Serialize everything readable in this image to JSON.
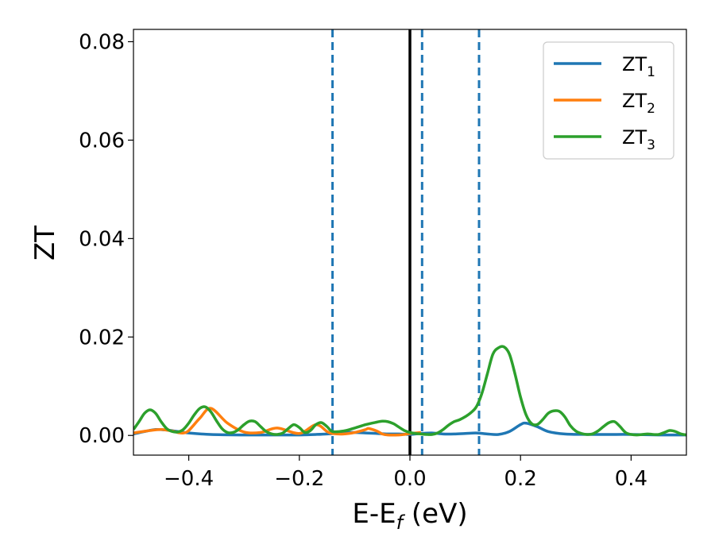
{
  "chart_data": {
    "type": "line",
    "title": "",
    "xlabel": "E-E",
    "xlabel_sub": "f",
    "xlabel_unit": " (eV)",
    "ylabel": "ZT",
    "xlim": [
      -0.5,
      0.5
    ],
    "ylim": [
      -0.004,
      0.0825
    ],
    "xticks": [
      -0.4,
      -0.2,
      0.0,
      0.2,
      0.4
    ],
    "xtick_labels": [
      "−0.4",
      "−0.2",
      "0.0",
      "0.2",
      "0.4"
    ],
    "yticks": [
      0.0,
      0.02,
      0.04,
      0.06,
      0.08
    ],
    "ytick_labels": [
      "0.00",
      "0.02",
      "0.04",
      "0.06",
      "0.08"
    ],
    "grid": false,
    "legend_position": "top-right",
    "vlines": [
      {
        "x": -0.14,
        "style": "dashed",
        "color": "#1f77b4"
      },
      {
        "x": 0.0,
        "style": "solid",
        "color": "#000000"
      },
      {
        "x": 0.022,
        "style": "dashed",
        "color": "#1f77b4"
      },
      {
        "x": 0.125,
        "style": "dashed",
        "color": "#1f77b4"
      }
    ],
    "series": [
      {
        "name": "ZT",
        "name_sub": "1",
        "color": "#1f77b4",
        "x": [
          -0.5,
          -0.48,
          -0.46,
          -0.44,
          -0.42,
          -0.4,
          -0.36,
          -0.3,
          -0.25,
          -0.2,
          -0.17,
          -0.15,
          -0.13,
          -0.12,
          -0.1,
          -0.08,
          -0.06,
          -0.04,
          -0.02,
          0.0,
          0.02,
          0.04,
          0.06,
          0.08,
          0.1,
          0.12,
          0.14,
          0.16,
          0.18,
          0.2,
          0.21,
          0.23,
          0.25,
          0.28,
          0.32,
          0.36,
          0.4,
          0.45,
          0.5
        ],
        "y": [
          0.0003,
          0.0008,
          0.0012,
          0.0011,
          0.0008,
          0.0005,
          0.0002,
          0.0001,
          0.0001,
          0.0001,
          0.0002,
          0.0003,
          0.0005,
          0.0006,
          0.0006,
          0.0005,
          0.0004,
          0.0003,
          0.0003,
          0.0002,
          0.0004,
          0.0005,
          0.0003,
          0.0003,
          0.0004,
          0.0005,
          0.0003,
          0.0002,
          0.0008,
          0.0022,
          0.0025,
          0.0018,
          0.0008,
          0.0003,
          0.0002,
          0.0002,
          0.0002,
          0.0001,
          0.0001
        ]
      },
      {
        "name": "ZT",
        "name_sub": "2",
        "color": "#ff7f0e",
        "x": [
          -0.5,
          -0.47,
          -0.45,
          -0.43,
          -0.42,
          -0.41,
          -0.4,
          -0.38,
          -0.36,
          -0.33,
          -0.3,
          -0.27,
          -0.24,
          -0.2,
          -0.17,
          -0.15,
          -0.14,
          -0.12,
          -0.1,
          -0.08,
          -0.075,
          -0.06,
          -0.05,
          -0.04,
          -0.02,
          -0.01,
          0.0,
          0.02
        ],
        "y": [
          0.0005,
          0.001,
          0.0012,
          0.0009,
          0.0006,
          0.0005,
          0.001,
          0.0035,
          0.0055,
          0.0025,
          0.0007,
          0.0006,
          0.0015,
          0.0004,
          0.0022,
          0.0008,
          0.0004,
          0.0003,
          0.0006,
          0.0012,
          0.0014,
          0.0009,
          0.0003,
          0.0001,
          0.0001,
          0.0002,
          0.0004,
          0.0006
        ]
      },
      {
        "name": "ZT",
        "name_sub": "3",
        "color": "#2ca02c",
        "x": [
          -0.5,
          -0.49,
          -0.48,
          -0.47,
          -0.46,
          -0.45,
          -0.44,
          -0.43,
          -0.42,
          -0.41,
          -0.4,
          -0.39,
          -0.38,
          -0.37,
          -0.36,
          -0.35,
          -0.34,
          -0.33,
          -0.32,
          -0.31,
          -0.3,
          -0.29,
          -0.28,
          -0.27,
          -0.26,
          -0.25,
          -0.24,
          -0.23,
          -0.22,
          -0.21,
          -0.2,
          -0.19,
          -0.18,
          -0.17,
          -0.16,
          -0.15,
          -0.14,
          -0.12,
          -0.1,
          -0.08,
          -0.06,
          -0.05,
          -0.04,
          -0.03,
          -0.02,
          -0.01,
          0.0,
          0.01,
          0.02,
          0.03,
          0.04,
          0.05,
          0.06,
          0.07,
          0.08,
          0.09,
          0.1,
          0.11,
          0.12,
          0.13,
          0.14,
          0.15,
          0.16,
          0.17,
          0.18,
          0.19,
          0.2,
          0.21,
          0.22,
          0.23,
          0.24,
          0.25,
          0.26,
          0.27,
          0.28,
          0.29,
          0.3,
          0.31,
          0.32,
          0.33,
          0.34,
          0.35,
          0.36,
          0.37,
          0.38,
          0.39,
          0.4,
          0.41,
          0.42,
          0.43,
          0.44,
          0.45,
          0.46,
          0.47,
          0.48,
          0.49,
          0.5
        ],
        "y": [
          0.0012,
          0.0028,
          0.0045,
          0.0052,
          0.0045,
          0.0028,
          0.0014,
          0.0008,
          0.0007,
          0.0012,
          0.0025,
          0.0042,
          0.0055,
          0.0058,
          0.0048,
          0.003,
          0.0014,
          0.0006,
          0.0006,
          0.0012,
          0.0022,
          0.0029,
          0.0028,
          0.0018,
          0.0008,
          0.0003,
          0.0002,
          0.0005,
          0.0014,
          0.0022,
          0.0016,
          0.0006,
          0.001,
          0.0022,
          0.0026,
          0.0018,
          0.0008,
          0.0009,
          0.0015,
          0.0022,
          0.0027,
          0.0029,
          0.0028,
          0.0024,
          0.0017,
          0.001,
          0.0006,
          0.0004,
          0.0003,
          0.0002,
          0.0002,
          0.0005,
          0.0012,
          0.0021,
          0.0028,
          0.0032,
          0.0038,
          0.0046,
          0.0058,
          0.0085,
          0.0125,
          0.0165,
          0.0178,
          0.018,
          0.0165,
          0.0125,
          0.0078,
          0.0042,
          0.0024,
          0.0022,
          0.0032,
          0.0045,
          0.005,
          0.0049,
          0.0038,
          0.002,
          0.0009,
          0.0004,
          0.0002,
          0.0003,
          0.0009,
          0.0018,
          0.0026,
          0.0028,
          0.0018,
          0.0006,
          0.0002,
          0.0001,
          0.0002,
          0.0003,
          0.0002,
          0.0002,
          0.0006,
          0.001,
          0.0008,
          0.0003,
          0.0001
        ]
      }
    ]
  }
}
